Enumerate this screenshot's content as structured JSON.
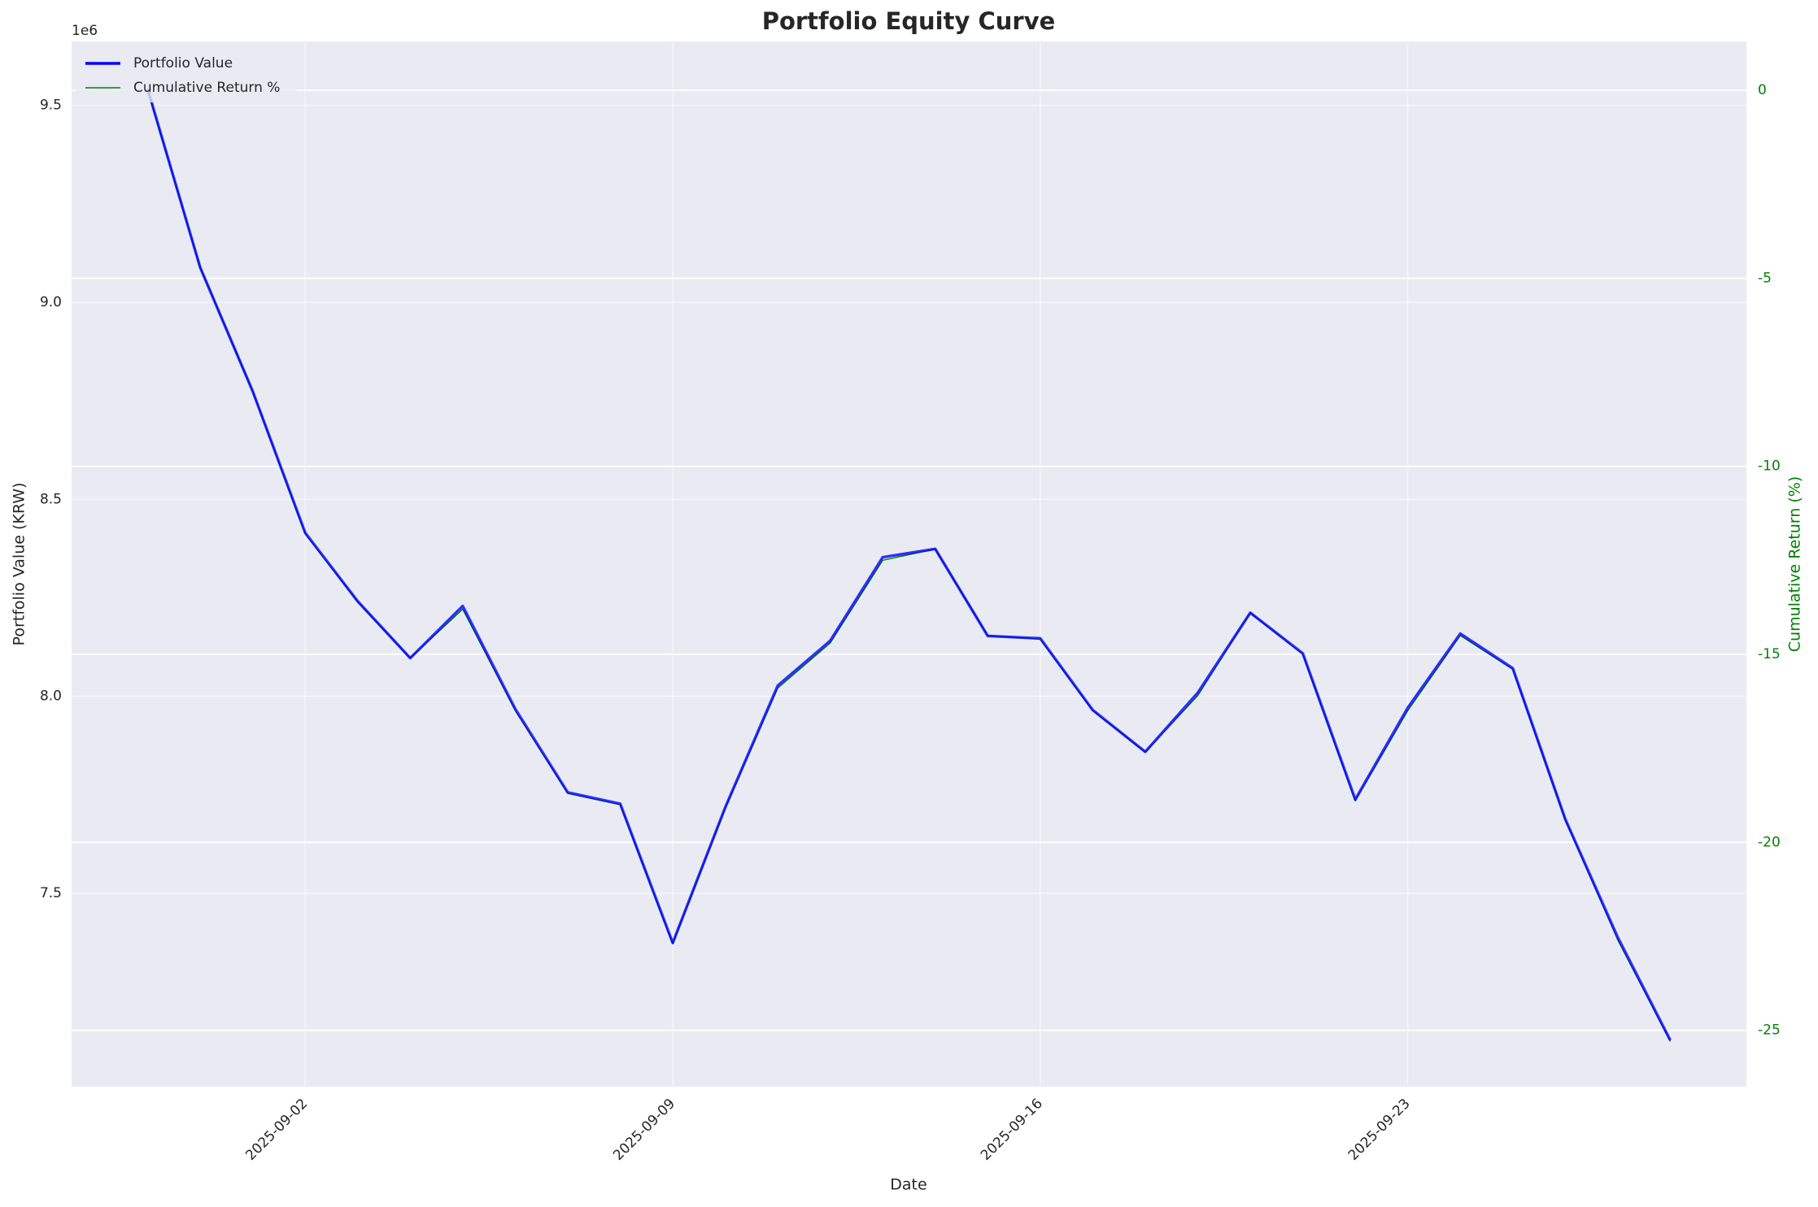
{
  "chart_data": {
    "type": "line",
    "title": "Portfolio Equity Curve",
    "xlabel": "Date",
    "ylabel": "Portfolio Value (KRW)",
    "y2label": "Cumulative Return (%)",
    "y_offset_label": "1e6",
    "x": [
      "2025-08-30",
      "2025-08-31",
      "2025-09-01",
      "2025-09-02",
      "2025-09-03",
      "2025-09-04",
      "2025-09-05",
      "2025-09-06",
      "2025-09-07",
      "2025-09-08",
      "2025-09-09",
      "2025-09-10",
      "2025-09-11",
      "2025-09-12",
      "2025-09-13",
      "2025-09-14",
      "2025-09-15",
      "2025-09-16",
      "2025-09-17",
      "2025-09-18",
      "2025-09-19",
      "2025-09-20",
      "2025-09-21",
      "2025-09-22",
      "2025-09-23",
      "2025-09-24",
      "2025-09-25",
      "2025-09-26",
      "2025-09-27",
      "2025-09-28"
    ],
    "series": [
      {
        "name": "Portfolio Value",
        "color": "blue",
        "values": [
          9541000,
          9088000,
          8774000,
          8415000,
          8241000,
          8097000,
          8229000,
          7968000,
          7756000,
          7727000,
          7374000,
          7718000,
          8027000,
          8141000,
          8353000,
          8374000,
          8153000,
          8147000,
          7965000,
          7859000,
          8009000,
          8212000,
          8109000,
          7738000,
          7971000,
          8159000,
          8071000,
          7688000,
          7388000,
          7127000
        ]
      },
      {
        "name": "Cumulative Return %",
        "color": "green",
        "axis": "y2",
        "values": [
          0,
          -4.7,
          -8.0,
          -11.8,
          -13.6,
          -15.1,
          -13.8,
          -16.5,
          -18.7,
          -19.0,
          -22.7,
          -19.1,
          -15.9,
          -14.7,
          -12.5,
          -12.2,
          -14.5,
          -14.6,
          -16.5,
          -17.6,
          -16.1,
          -13.9,
          -15.0,
          -18.9,
          -16.5,
          -14.5,
          -15.4,
          -19.4,
          -22.6,
          -25.3
        ]
      }
    ],
    "xlim": [
      "2025-08-28T13:12:00Z",
      "2025-09-29T10:48:00Z"
    ],
    "xticks": [
      "2025-09-02",
      "2025-09-09",
      "2025-09-16",
      "2025-09-23"
    ],
    "ylim": [
      7009000,
      9662000
    ],
    "yticks": [
      {
        "value": 7500000,
        "label": "7.5"
      },
      {
        "value": 8000000,
        "label": "8.0"
      },
      {
        "value": 8500000,
        "label": "8.5"
      },
      {
        "value": 9000000,
        "label": "9.0"
      },
      {
        "value": 9500000,
        "label": "9.5"
      }
    ],
    "y2lim": [
      -26.5,
      1.3
    ],
    "y2ticks": [
      -25,
      -20,
      -15,
      -10,
      -5,
      0
    ],
    "grid": true,
    "legend": "upper left"
  }
}
